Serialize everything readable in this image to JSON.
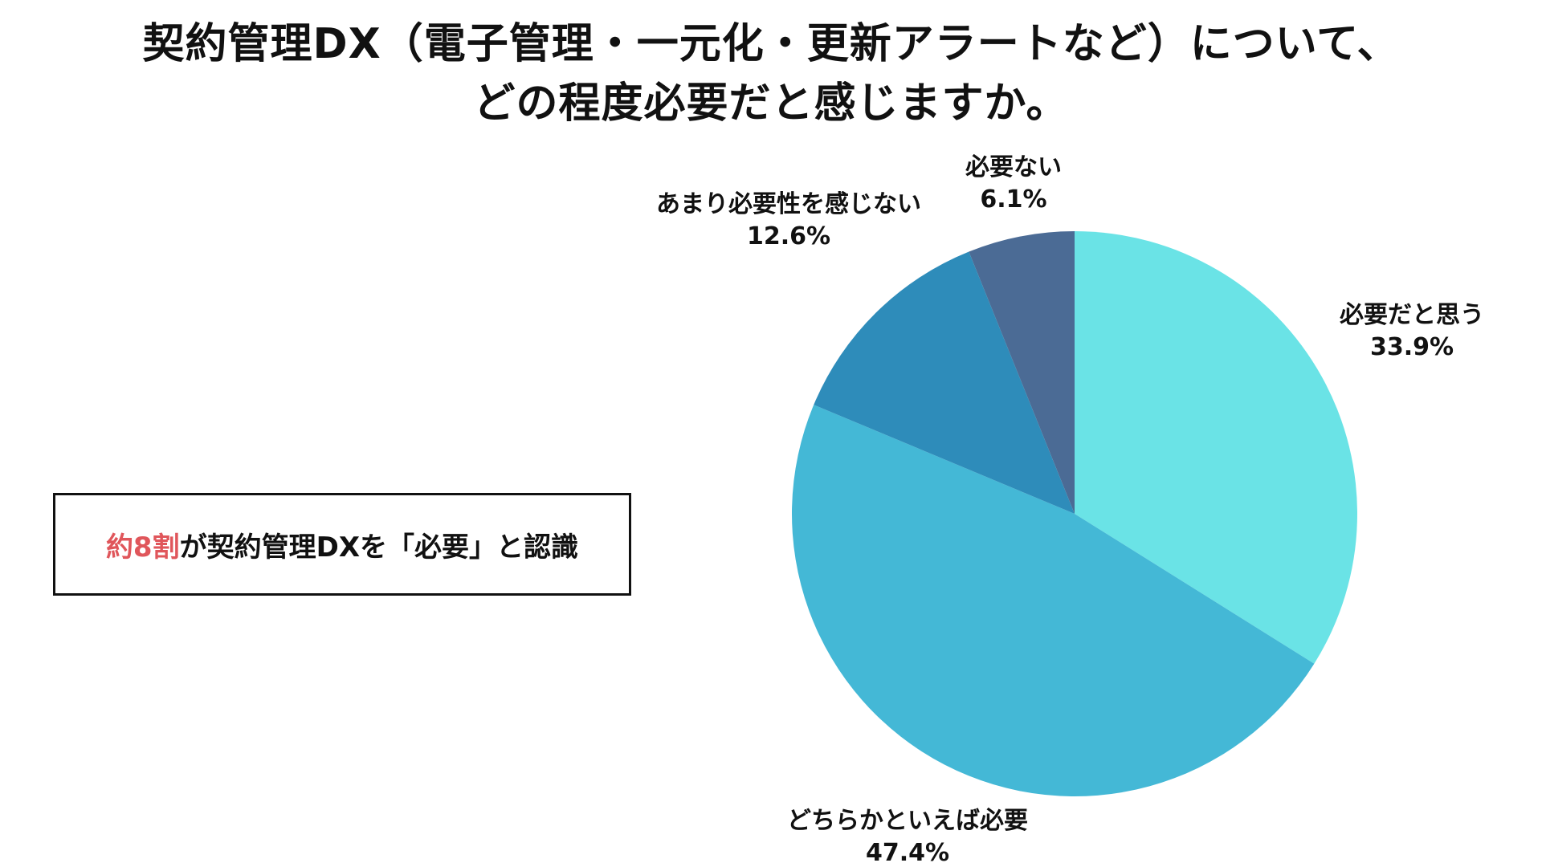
{
  "title": {
    "line1": "契約管理DX（電子管理・一元化・更新アラートなど）について、",
    "line2": "どの程度必要だと感じますか。"
  },
  "callout": {
    "highlight": "約8割",
    "rest": "が契約管理DXを「必要」と認識",
    "highlight_color": "#e0565b"
  },
  "chart_data": {
    "type": "pie",
    "start": "12 o'clock",
    "direction": "clockwise",
    "slices": [
      {
        "label": "必要だと思う",
        "value": 33.9,
        "value_text": "33.9%",
        "color": "#6ae3e6"
      },
      {
        "label": "どちらかといえば必要",
        "value": 47.4,
        "value_text": "47.4%",
        "color": "#44b8d6"
      },
      {
        "label": "あまり必要性を感じない",
        "value": 12.6,
        "value_text": "12.6%",
        "color": "#2e8cba"
      },
      {
        "label": "必要ない",
        "value": 6.1,
        "value_text": "6.1%",
        "color": "#4b6b95"
      }
    ]
  }
}
